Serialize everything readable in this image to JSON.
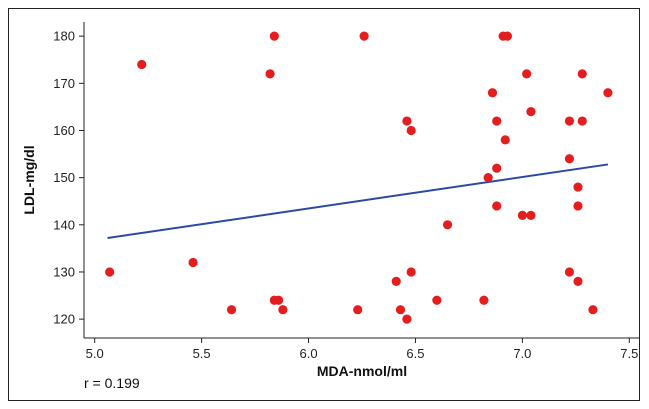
{
  "chart_data": {
    "type": "scatter",
    "xlabel": "MDA-nmol/ml",
    "ylabel": "LDL-mg/dl",
    "xlim": [
      4.95,
      7.55
    ],
    "ylim": [
      116,
      183
    ],
    "xticks": [
      5.0,
      5.5,
      6.0,
      6.5,
      7.0,
      7.5
    ],
    "yticks": [
      120,
      130,
      140,
      150,
      160,
      170,
      180
    ],
    "xtick_labels": [
      "5.0",
      "5.5",
      "6.0",
      "6.5",
      "7.0",
      "7.5"
    ],
    "ytick_labels": [
      "120",
      "130",
      "140",
      "150",
      "160",
      "170",
      "180"
    ],
    "grid": false,
    "annotation": "r = 0.199",
    "point_color": "#e41e1e",
    "line_color": "#2c4aa3",
    "points": [
      {
        "x": 5.07,
        "y": 130
      },
      {
        "x": 5.22,
        "y": 174
      },
      {
        "x": 5.46,
        "y": 132
      },
      {
        "x": 5.64,
        "y": 122
      },
      {
        "x": 5.82,
        "y": 172
      },
      {
        "x": 5.84,
        "y": 180
      },
      {
        "x": 5.84,
        "y": 124
      },
      {
        "x": 5.86,
        "y": 124
      },
      {
        "x": 5.88,
        "y": 122
      },
      {
        "x": 6.23,
        "y": 122
      },
      {
        "x": 6.26,
        "y": 180
      },
      {
        "x": 6.41,
        "y": 128
      },
      {
        "x": 6.43,
        "y": 122
      },
      {
        "x": 6.46,
        "y": 162
      },
      {
        "x": 6.46,
        "y": 120
      },
      {
        "x": 6.48,
        "y": 160
      },
      {
        "x": 6.48,
        "y": 130
      },
      {
        "x": 6.6,
        "y": 124
      },
      {
        "x": 6.65,
        "y": 140
      },
      {
        "x": 6.82,
        "y": 124
      },
      {
        "x": 6.84,
        "y": 150
      },
      {
        "x": 6.86,
        "y": 168
      },
      {
        "x": 6.88,
        "y": 162
      },
      {
        "x": 6.88,
        "y": 152
      },
      {
        "x": 6.88,
        "y": 144
      },
      {
        "x": 6.91,
        "y": 180
      },
      {
        "x": 6.93,
        "y": 180
      },
      {
        "x": 6.92,
        "y": 158
      },
      {
        "x": 7.0,
        "y": 142
      },
      {
        "x": 7.02,
        "y": 172
      },
      {
        "x": 7.04,
        "y": 164
      },
      {
        "x": 7.04,
        "y": 142
      },
      {
        "x": 7.22,
        "y": 162
      },
      {
        "x": 7.22,
        "y": 154
      },
      {
        "x": 7.22,
        "y": 130
      },
      {
        "x": 7.26,
        "y": 148
      },
      {
        "x": 7.26,
        "y": 144
      },
      {
        "x": 7.26,
        "y": 128
      },
      {
        "x": 7.28,
        "y": 172
      },
      {
        "x": 7.28,
        "y": 162
      },
      {
        "x": 7.33,
        "y": 122
      },
      {
        "x": 7.4,
        "y": 168
      }
    ],
    "trend_line": {
      "x": [
        5.06,
        7.4
      ],
      "y": [
        137.2,
        152.8
      ]
    }
  }
}
